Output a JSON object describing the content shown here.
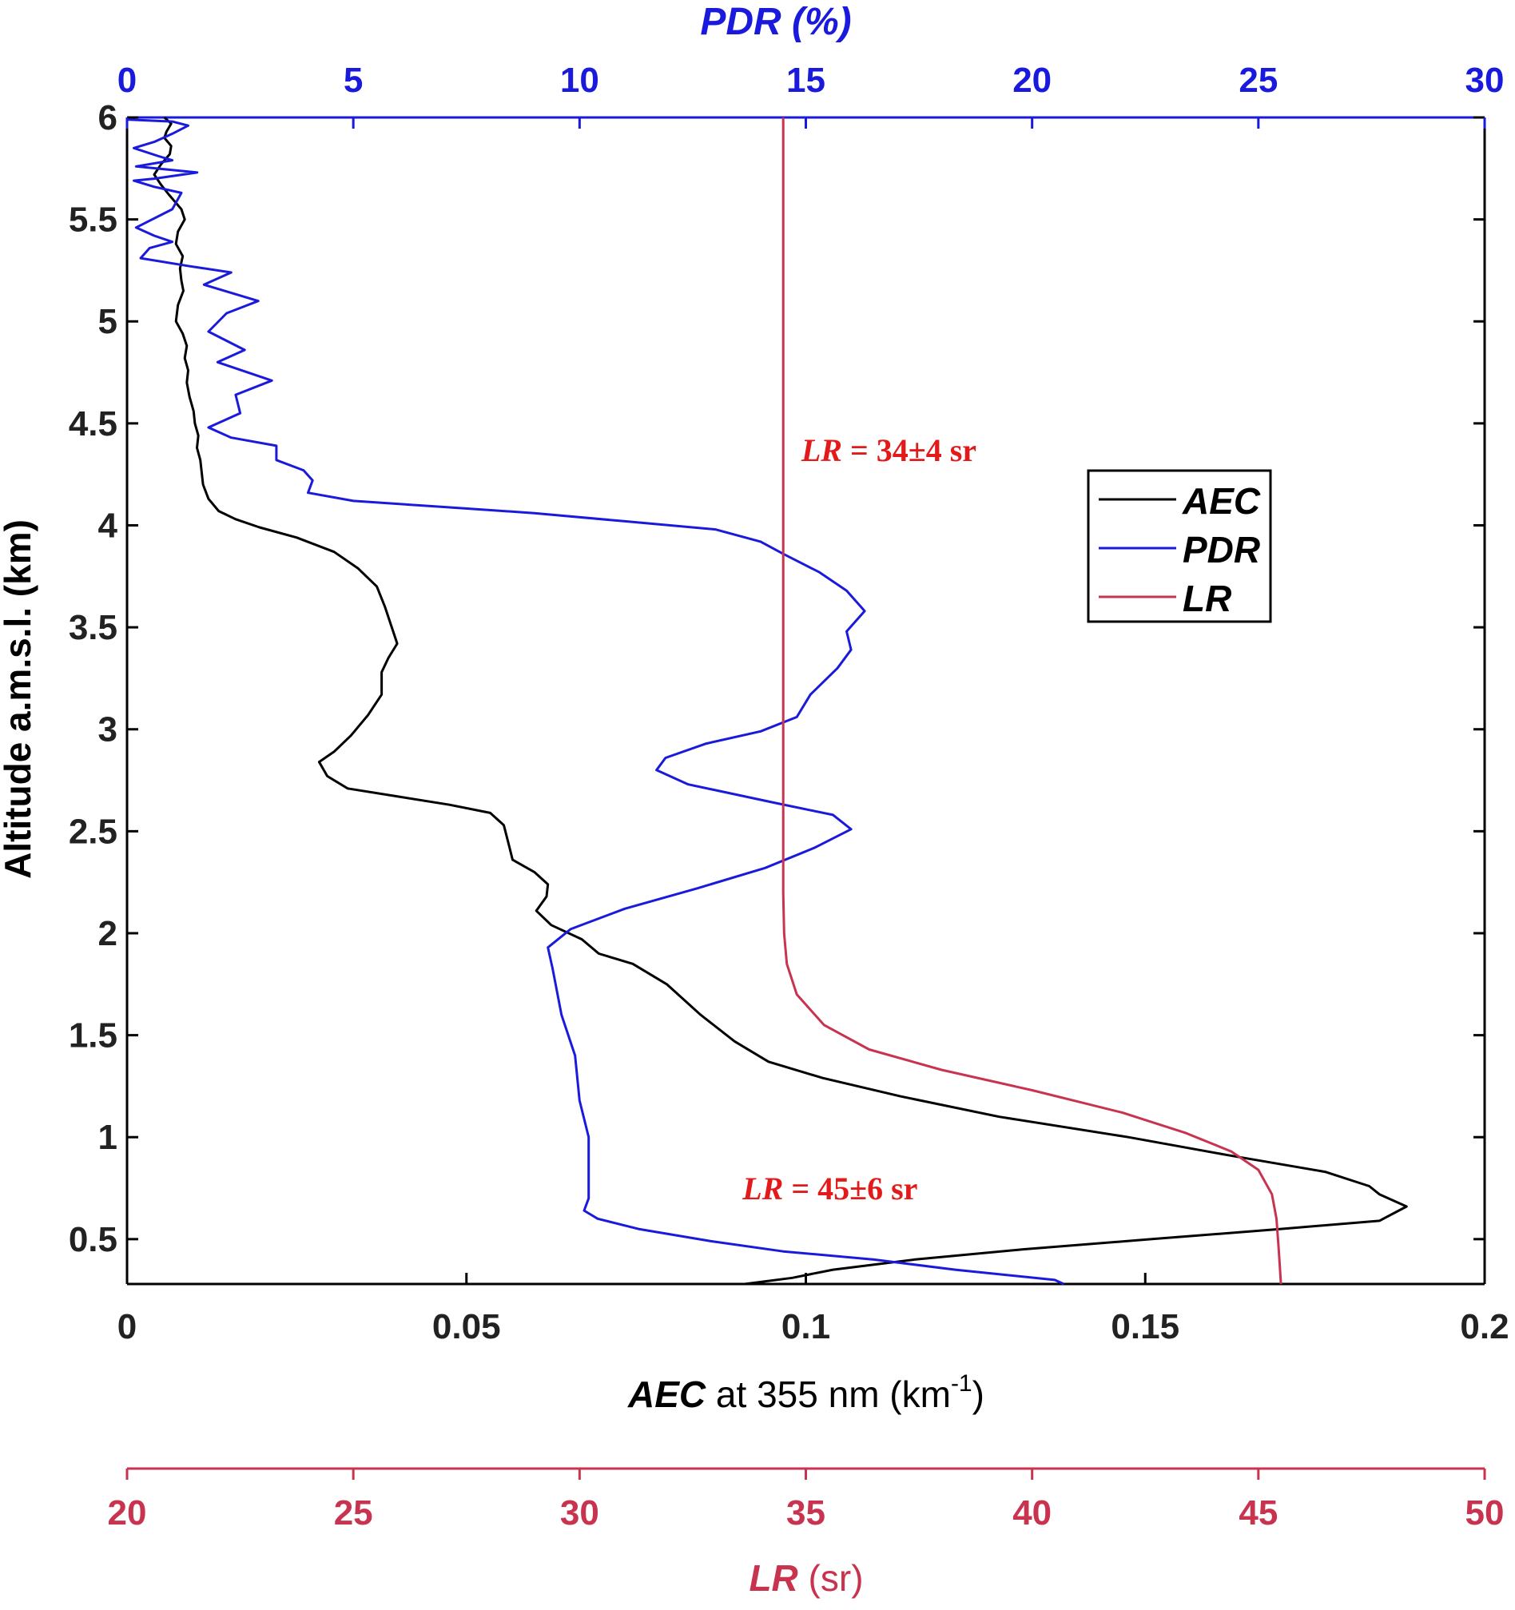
{
  "chart_data": {
    "type": "line",
    "yaxis": {
      "label": "Altitude a.m.s.l. (km)",
      "range": [
        0.28,
        6.0
      ],
      "ticks": [
        "0.5",
        "1",
        "1.5",
        "2",
        "2.5",
        "3",
        "3.5",
        "4",
        "4.5",
        "5",
        "5.5",
        "6"
      ]
    },
    "xaxis_bottom": {
      "label_bold": "AEC",
      "label_rest": " at 355 nm (km",
      "label_sup": "-1",
      "label_end": ")",
      "range": [
        0,
        0.2
      ],
      "ticks": [
        "0",
        "0.05",
        "0.1",
        "0.15",
        "0.2"
      ]
    },
    "xaxis_top": {
      "label": "PDR (%)",
      "range": [
        0,
        30
      ],
      "ticks": [
        "0",
        "5",
        "10",
        "15",
        "20",
        "25",
        "30"
      ]
    },
    "xaxis_lr": {
      "label_bold": "LR",
      "label_rest": " (sr)",
      "range": [
        20,
        50
      ],
      "ticks": [
        "20",
        "25",
        "30",
        "35",
        "40",
        "45",
        "50"
      ]
    },
    "legend": {
      "position": "right",
      "entries": [
        "AEC",
        "PDR",
        "LR"
      ]
    },
    "annotations": [
      {
        "italic": "LR",
        "text": " = 34±4 sr",
        "x_lr": 34.9,
        "y": 4.37
      },
      {
        "italic": "LR",
        "text": " = 45±6 sr",
        "x_lr": 33.6,
        "y": 0.75
      }
    ],
    "colors": {
      "AEC": "#000000",
      "PDR": "#1a1adc",
      "LR": "#c8334f",
      "annotation": "#e21a1a"
    },
    "series": [
      {
        "name": "AEC",
        "axis": "bottom",
        "points": [
          [
            0.0055,
            6.0
          ],
          [
            0.0065,
            5.97
          ],
          [
            0.0058,
            5.93
          ],
          [
            0.0055,
            5.9
          ],
          [
            0.0065,
            5.86
          ],
          [
            0.0063,
            5.82
          ],
          [
            0.005,
            5.77
          ],
          [
            0.004,
            5.72
          ],
          [
            0.005,
            5.67
          ],
          [
            0.0062,
            5.62
          ],
          [
            0.008,
            5.55
          ],
          [
            0.0085,
            5.5
          ],
          [
            0.0075,
            5.44
          ],
          [
            0.0072,
            5.38
          ],
          [
            0.0082,
            5.32
          ],
          [
            0.0078,
            5.26
          ],
          [
            0.008,
            5.2
          ],
          [
            0.0083,
            5.15
          ],
          [
            0.0075,
            5.08
          ],
          [
            0.0072,
            5.0
          ],
          [
            0.0082,
            4.94
          ],
          [
            0.0088,
            4.88
          ],
          [
            0.0085,
            4.82
          ],
          [
            0.009,
            4.76
          ],
          [
            0.0088,
            4.7
          ],
          [
            0.0092,
            4.63
          ],
          [
            0.0098,
            4.56
          ],
          [
            0.01,
            4.5
          ],
          [
            0.0105,
            4.44
          ],
          [
            0.0103,
            4.38
          ],
          [
            0.0108,
            4.32
          ],
          [
            0.011,
            4.26
          ],
          [
            0.0112,
            4.2
          ],
          [
            0.012,
            4.13
          ],
          [
            0.0135,
            4.07
          ],
          [
            0.016,
            4.03
          ],
          [
            0.0195,
            3.99
          ],
          [
            0.025,
            3.94
          ],
          [
            0.0305,
            3.87
          ],
          [
            0.034,
            3.79
          ],
          [
            0.0368,
            3.7
          ],
          [
            0.038,
            3.6
          ],
          [
            0.039,
            3.5
          ],
          [
            0.0398,
            3.42
          ],
          [
            0.0385,
            3.35
          ],
          [
            0.0375,
            3.28
          ],
          [
            0.0375,
            3.17
          ],
          [
            0.0355,
            3.07
          ],
          [
            0.033,
            2.97
          ],
          [
            0.0305,
            2.89
          ],
          [
            0.0283,
            2.84
          ],
          [
            0.0295,
            2.77
          ],
          [
            0.0325,
            2.71
          ],
          [
            0.04,
            2.67
          ],
          [
            0.0475,
            2.63
          ],
          [
            0.0535,
            2.59
          ],
          [
            0.0555,
            2.53
          ],
          [
            0.0562,
            2.44
          ],
          [
            0.0568,
            2.36
          ],
          [
            0.06,
            2.3
          ],
          [
            0.062,
            2.24
          ],
          [
            0.0618,
            2.18
          ],
          [
            0.0603,
            2.11
          ],
          [
            0.0625,
            2.04
          ],
          [
            0.067,
            1.97
          ],
          [
            0.0695,
            1.9
          ],
          [
            0.0745,
            1.85
          ],
          [
            0.0795,
            1.75
          ],
          [
            0.0845,
            1.6
          ],
          [
            0.0895,
            1.47
          ],
          [
            0.0945,
            1.37
          ],
          [
            0.1025,
            1.29
          ],
          [
            0.114,
            1.2
          ],
          [
            0.1285,
            1.1
          ],
          [
            0.1475,
            1.0
          ],
          [
            0.1625,
            0.91
          ],
          [
            0.1765,
            0.83
          ],
          [
            0.183,
            0.76
          ],
          [
            0.1845,
            0.72
          ],
          [
            0.1885,
            0.66
          ],
          [
            0.1845,
            0.59
          ],
          [
            0.17,
            0.55
          ],
          [
            0.151,
            0.5
          ],
          [
            0.132,
            0.45
          ],
          [
            0.116,
            0.4
          ],
          [
            0.104,
            0.35
          ],
          [
            0.098,
            0.31
          ],
          [
            0.091,
            0.28
          ]
        ]
      },
      {
        "name": "PDR",
        "axis": "top",
        "points": [
          [
            0.0,
            5.99
          ],
          [
            1.0,
            5.98
          ],
          [
            1.35,
            5.96
          ],
          [
            1.0,
            5.92
          ],
          [
            0.6,
            5.88
          ],
          [
            0.15,
            5.85
          ],
          [
            0.7,
            5.81
          ],
          [
            1.0,
            5.79
          ],
          [
            0.2,
            5.76
          ],
          [
            1.55,
            5.73
          ],
          [
            0.6,
            5.7
          ],
          [
            0.15,
            5.69
          ],
          [
            0.6,
            5.66
          ],
          [
            1.2,
            5.63
          ],
          [
            1.0,
            5.55
          ],
          [
            0.2,
            5.46
          ],
          [
            0.6,
            5.42
          ],
          [
            1.0,
            5.39
          ],
          [
            0.5,
            5.36
          ],
          [
            0.3,
            5.31
          ],
          [
            1.4,
            5.27
          ],
          [
            2.3,
            5.24
          ],
          [
            1.7,
            5.18
          ],
          [
            2.9,
            5.1
          ],
          [
            2.2,
            5.04
          ],
          [
            1.8,
            4.95
          ],
          [
            2.6,
            4.86
          ],
          [
            2.0,
            4.8
          ],
          [
            3.2,
            4.71
          ],
          [
            2.4,
            4.64
          ],
          [
            2.5,
            4.55
          ],
          [
            1.8,
            4.48
          ],
          [
            2.3,
            4.43
          ],
          [
            3.3,
            4.39
          ],
          [
            3.3,
            4.32
          ],
          [
            3.9,
            4.27
          ],
          [
            4.1,
            4.22
          ],
          [
            4.0,
            4.16
          ],
          [
            5.0,
            4.12
          ],
          [
            7.0,
            4.09
          ],
          [
            9.0,
            4.06
          ],
          [
            11.0,
            4.02
          ],
          [
            13.0,
            3.98
          ],
          [
            14.0,
            3.92
          ],
          [
            14.5,
            3.86
          ],
          [
            15.3,
            3.77
          ],
          [
            15.9,
            3.68
          ],
          [
            16.3,
            3.58
          ],
          [
            15.9,
            3.48
          ],
          [
            16.0,
            3.39
          ],
          [
            15.7,
            3.3
          ],
          [
            15.1,
            3.17
          ],
          [
            14.8,
            3.06
          ],
          [
            14.0,
            2.99
          ],
          [
            12.8,
            2.93
          ],
          [
            11.9,
            2.86
          ],
          [
            11.7,
            2.8
          ],
          [
            12.4,
            2.73
          ],
          [
            14.3,
            2.64
          ],
          [
            15.6,
            2.58
          ],
          [
            16.0,
            2.51
          ],
          [
            15.2,
            2.42
          ],
          [
            14.1,
            2.32
          ],
          [
            12.6,
            2.22
          ],
          [
            11.0,
            2.12
          ],
          [
            9.8,
            2.02
          ],
          [
            9.3,
            1.93
          ],
          [
            9.4,
            1.83
          ],
          [
            9.6,
            1.6
          ],
          [
            9.9,
            1.4
          ],
          [
            10.0,
            1.18
          ],
          [
            10.2,
            1.0
          ],
          [
            10.2,
            0.82
          ],
          [
            10.2,
            0.7
          ],
          [
            10.1,
            0.64
          ],
          [
            10.4,
            0.6
          ],
          [
            11.3,
            0.55
          ],
          [
            12.9,
            0.49
          ],
          [
            14.5,
            0.44
          ],
          [
            16.5,
            0.4
          ],
          [
            18.3,
            0.35
          ],
          [
            20.5,
            0.3
          ],
          [
            20.7,
            0.28
          ]
        ]
      },
      {
        "name": "LR",
        "axis": "lr",
        "points": [
          [
            34.5,
            6.0
          ],
          [
            34.5,
            2.2
          ],
          [
            34.52,
            2.0
          ],
          [
            34.58,
            1.85
          ],
          [
            34.8,
            1.7
          ],
          [
            35.4,
            1.55
          ],
          [
            36.4,
            1.43
          ],
          [
            38.0,
            1.33
          ],
          [
            40.0,
            1.23
          ],
          [
            42.0,
            1.12
          ],
          [
            43.4,
            1.02
          ],
          [
            44.4,
            0.93
          ],
          [
            45.0,
            0.84
          ],
          [
            45.3,
            0.72
          ],
          [
            45.4,
            0.6
          ],
          [
            45.45,
            0.45
          ],
          [
            45.5,
            0.28
          ]
        ]
      }
    ]
  }
}
